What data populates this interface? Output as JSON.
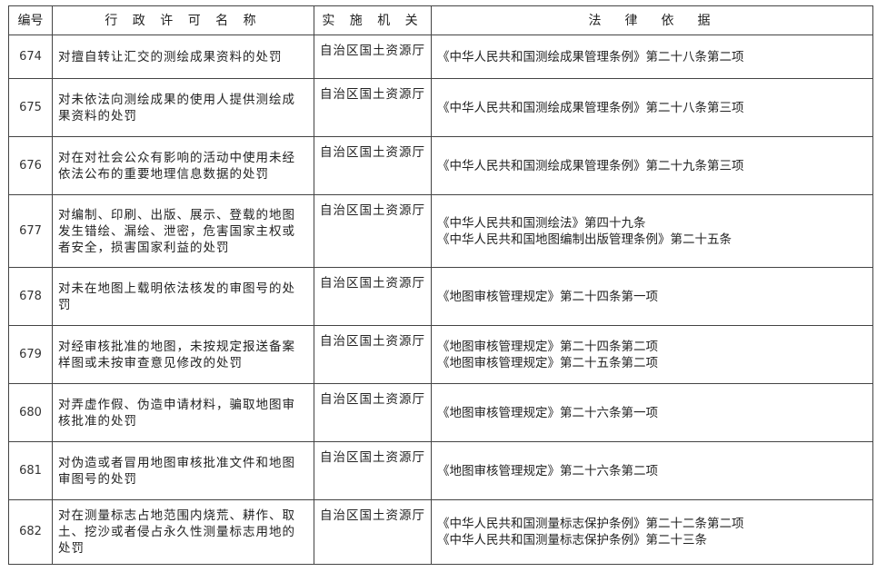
{
  "headers": [
    "编号",
    "行 政 许 可 名 称",
    "实 施 机 关",
    "法　律　依　据"
  ],
  "rows": [
    {
      "id": "674",
      "name": "对擅自转让汇交的测绘成果资料的处罚",
      "agency": "自治区国土资源厅",
      "law": [
        "《中华人民共和国测绘成果管理条例》第二十八条第二项"
      ]
    },
    {
      "id": "675",
      "name": "对未依法向测绘成果的使用人提供测绘成果资料的处罚",
      "agency": "自治区国土资源厅",
      "law": [
        "《中华人民共和国测绘成果管理条例》第二十八条第三项"
      ]
    },
    {
      "id": "676",
      "name": "对在对社会公众有影响的活动中使用未经依法公布的重要地理信息数据的处罚",
      "agency": "自治区国土资源厅",
      "law": [
        "《中华人民共和国测绘成果管理条例》第二十九条第三项"
      ]
    },
    {
      "id": "677",
      "name": "对编制、印刷、出版、展示、登载的地图发生错绘、漏绘、泄密，危害国家主权或者安全，损害国家利益的处罚",
      "agency": "自治区国土资源厅",
      "law": [
        "《中华人民共和国测绘法》第四十九条",
        "《中华人民共和国地图编制出版管理条例》第二十五条"
      ]
    },
    {
      "id": "678",
      "name": "对未在地图上载明依法核发的审图号的处罚",
      "agency": "自治区国土资源厅",
      "law": [
        "《地图审核管理规定》第二十四条第一项"
      ]
    },
    {
      "id": "679",
      "name": "对经审核批准的地图，未按规定报送备案样图或未按审查意见修改的处罚",
      "agency": "自治区国土资源厅",
      "law": [
        "《地图审核管理规定》第二十四条第二项",
        "《地图审核管理规定》第二十五条第二项"
      ]
    },
    {
      "id": "680",
      "name": "对弄虚作假、伪造申请材料，骗取地图审核批准的处罚",
      "agency": "自治区国土资源厅",
      "law": [
        "《地图审核管理规定》第二十六条第一项"
      ]
    },
    {
      "id": "681",
      "name": "对伪造或者冒用地图审核批准文件和地图审图号的处罚",
      "agency": "自治区国土资源厅",
      "law": [
        "《地图审核管理规定》第二十六条第二项"
      ]
    },
    {
      "id": "682",
      "name": "对在测量标志占地范围内烧荒、耕作、取土、挖沙或者侵占永久性测量标志用地的处罚",
      "agency": "自治区国土资源厅",
      "law": [
        "《中华人民共和国测量标志保护条例》第二十二条第二项",
        "《中华人民共和国测量标志保护条例》第二十三条"
      ]
    }
  ]
}
